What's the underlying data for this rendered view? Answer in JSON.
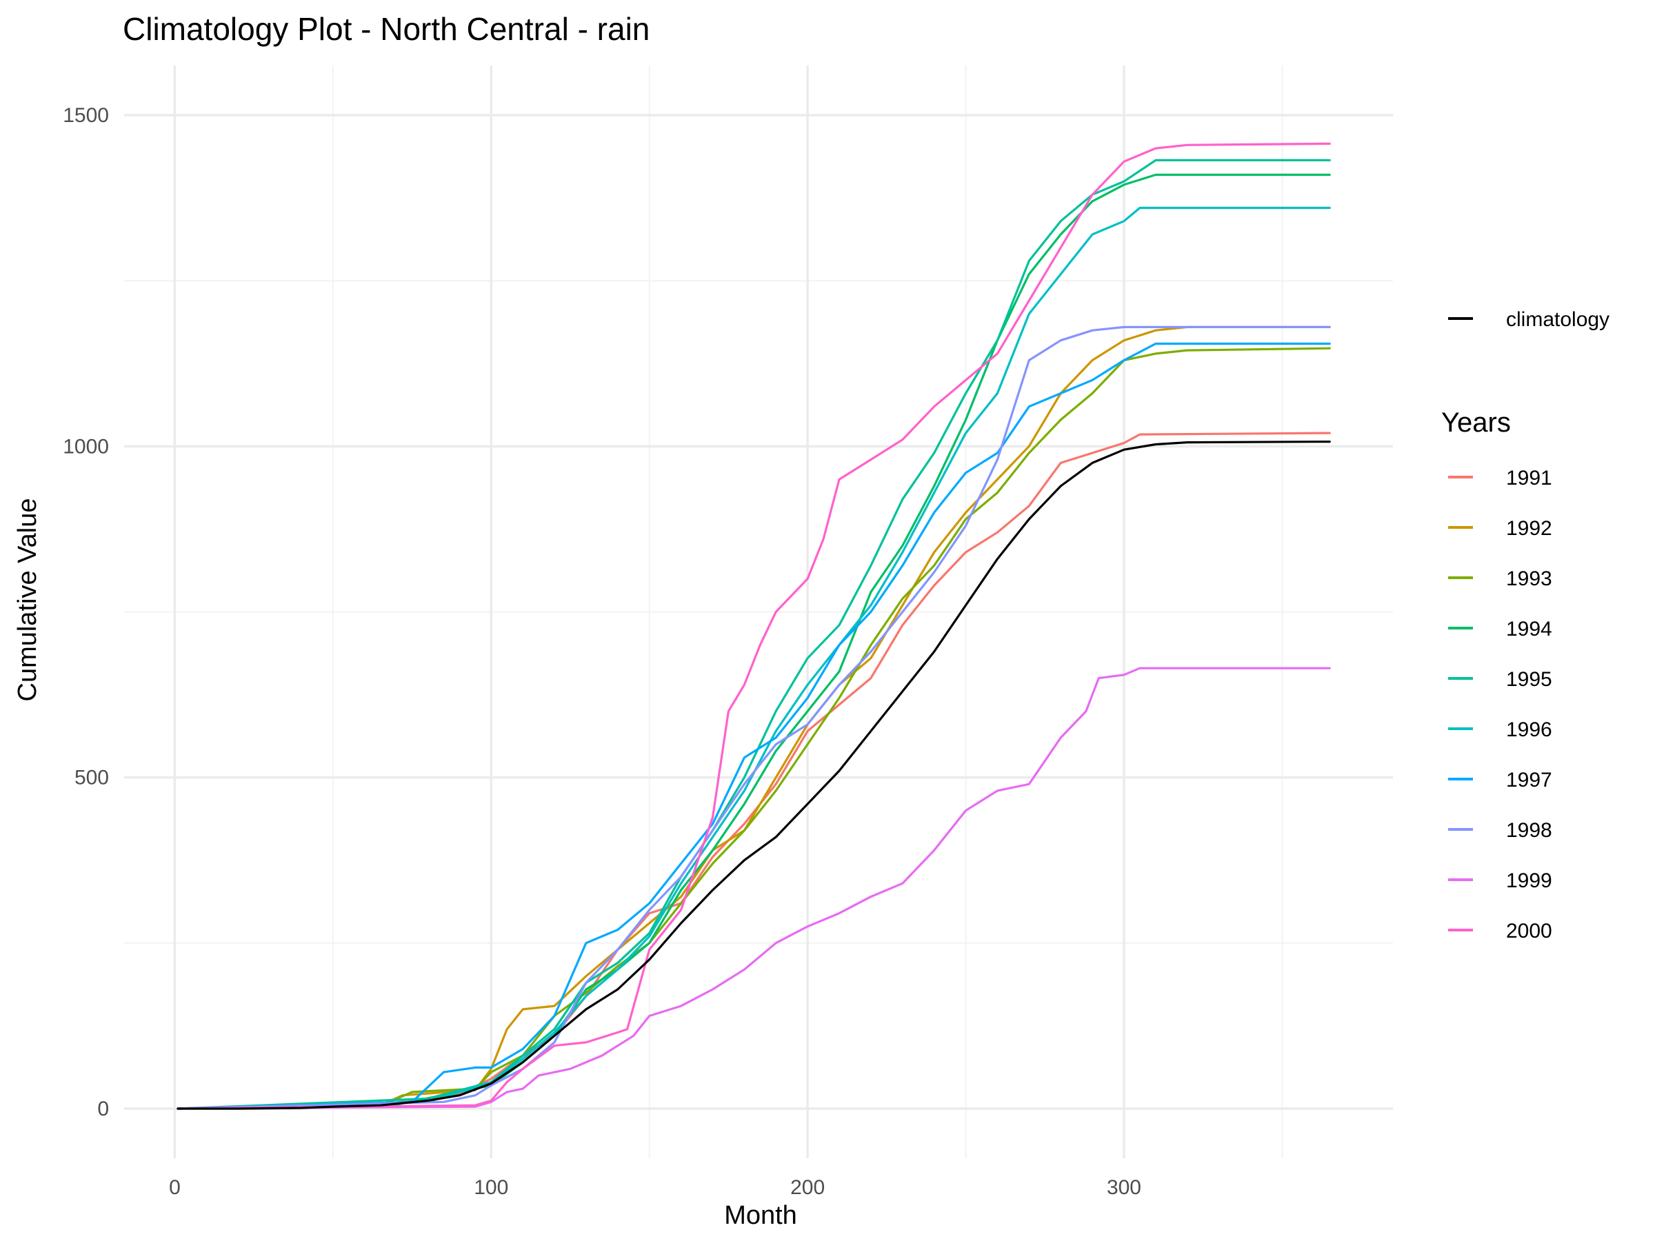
{
  "chart_data": {
    "type": "line",
    "title": "Climatology Plot - North Central - rain",
    "xlabel": "Month",
    "ylabel": "Cumulative Value",
    "xlim": [
      -16,
      385
    ],
    "ylim": [
      -75,
      1575
    ],
    "x_ticks": [
      0,
      100,
      200,
      300
    ],
    "y_ticks": [
      0,
      500,
      1000,
      1500
    ],
    "grid": true,
    "legend_placement": "right",
    "climatology_legend_label": "climatology",
    "legend_title": "Years",
    "climatology": {
      "name": "climatology",
      "color": "#000000",
      "points": [
        [
          1,
          0
        ],
        [
          20,
          0
        ],
        [
          40,
          1
        ],
        [
          50,
          3
        ],
        [
          65,
          5
        ],
        [
          80,
          12
        ],
        [
          90,
          20
        ],
        [
          100,
          38
        ],
        [
          110,
          70
        ],
        [
          120,
          110
        ],
        [
          130,
          150
        ],
        [
          140,
          180
        ],
        [
          150,
          225
        ],
        [
          160,
          280
        ],
        [
          170,
          330
        ],
        [
          180,
          375
        ],
        [
          190,
          410
        ],
        [
          200,
          460
        ],
        [
          210,
          510
        ],
        [
          220,
          570
        ],
        [
          230,
          630
        ],
        [
          240,
          690
        ],
        [
          250,
          760
        ],
        [
          260,
          830
        ],
        [
          270,
          890
        ],
        [
          280,
          940
        ],
        [
          290,
          975
        ],
        [
          300,
          995
        ],
        [
          310,
          1003
        ],
        [
          320,
          1006
        ],
        [
          365,
          1007
        ]
      ]
    },
    "series": [
      {
        "name": "1991",
        "color": "#F8766D",
        "points": [
          [
            1,
            0
          ],
          [
            60,
            3
          ],
          [
            90,
            22
          ],
          [
            100,
            45
          ],
          [
            110,
            80
          ],
          [
            120,
            110
          ],
          [
            130,
            170
          ],
          [
            140,
            240
          ],
          [
            150,
            295
          ],
          [
            160,
            310
          ],
          [
            170,
            380
          ],
          [
            180,
            430
          ],
          [
            190,
            490
          ],
          [
            200,
            570
          ],
          [
            210,
            610
          ],
          [
            220,
            650
          ],
          [
            230,
            730
          ],
          [
            240,
            790
          ],
          [
            250,
            840
          ],
          [
            260,
            870
          ],
          [
            270,
            910
          ],
          [
            280,
            975
          ],
          [
            290,
            990
          ],
          [
            300,
            1005
          ],
          [
            305,
            1018
          ],
          [
            365,
            1020
          ]
        ]
      },
      {
        "name": "1992",
        "color": "#CD9600",
        "points": [
          [
            1,
            0
          ],
          [
            65,
            5
          ],
          [
            72,
            20
          ],
          [
            95,
            28
          ],
          [
            100,
            60
          ],
          [
            105,
            120
          ],
          [
            110,
            150
          ],
          [
            120,
            155
          ],
          [
            130,
            200
          ],
          [
            140,
            240
          ],
          [
            150,
            280
          ],
          [
            160,
            320
          ],
          [
            170,
            390
          ],
          [
            180,
            420
          ],
          [
            190,
            500
          ],
          [
            200,
            580
          ],
          [
            210,
            640
          ],
          [
            220,
            680
          ],
          [
            230,
            760
          ],
          [
            240,
            840
          ],
          [
            250,
            900
          ],
          [
            260,
            950
          ],
          [
            270,
            1000
          ],
          [
            280,
            1080
          ],
          [
            290,
            1130
          ],
          [
            300,
            1160
          ],
          [
            310,
            1175
          ],
          [
            320,
            1180
          ],
          [
            365,
            1180
          ]
        ]
      },
      {
        "name": "1993",
        "color": "#7CAE00",
        "points": [
          [
            1,
            0
          ],
          [
            65,
            4
          ],
          [
            75,
            25
          ],
          [
            95,
            30
          ],
          [
            100,
            55
          ],
          [
            110,
            80
          ],
          [
            120,
            140
          ],
          [
            130,
            175
          ],
          [
            140,
            215
          ],
          [
            150,
            250
          ],
          [
            160,
            310
          ],
          [
            170,
            370
          ],
          [
            180,
            420
          ],
          [
            190,
            480
          ],
          [
            200,
            550
          ],
          [
            210,
            620
          ],
          [
            220,
            700
          ],
          [
            230,
            770
          ],
          [
            240,
            820
          ],
          [
            250,
            890
          ],
          [
            260,
            930
          ],
          [
            270,
            990
          ],
          [
            280,
            1040
          ],
          [
            290,
            1080
          ],
          [
            300,
            1130
          ],
          [
            310,
            1140
          ],
          [
            320,
            1145
          ],
          [
            365,
            1148
          ]
        ]
      },
      {
        "name": "1994",
        "color": "#00BE67",
        "points": [
          [
            1,
            0
          ],
          [
            70,
            6
          ],
          [
            100,
            35
          ],
          [
            110,
            70
          ],
          [
            120,
            110
          ],
          [
            130,
            180
          ],
          [
            140,
            210
          ],
          [
            150,
            250
          ],
          [
            160,
            330
          ],
          [
            170,
            390
          ],
          [
            180,
            460
          ],
          [
            190,
            540
          ],
          [
            200,
            600
          ],
          [
            210,
            660
          ],
          [
            220,
            780
          ],
          [
            230,
            850
          ],
          [
            240,
            940
          ],
          [
            250,
            1040
          ],
          [
            260,
            1160
          ],
          [
            270,
            1260
          ],
          [
            280,
            1320
          ],
          [
            290,
            1370
          ],
          [
            300,
            1395
          ],
          [
            310,
            1410
          ],
          [
            365,
            1410
          ]
        ]
      },
      {
        "name": "1995",
        "color": "#00C19A",
        "points": [
          [
            1,
            0
          ],
          [
            80,
            15
          ],
          [
            100,
            40
          ],
          [
            110,
            80
          ],
          [
            120,
            120
          ],
          [
            130,
            190
          ],
          [
            140,
            220
          ],
          [
            150,
            265
          ],
          [
            160,
            350
          ],
          [
            170,
            420
          ],
          [
            180,
            500
          ],
          [
            190,
            600
          ],
          [
            200,
            680
          ],
          [
            210,
            730
          ],
          [
            220,
            820
          ],
          [
            230,
            920
          ],
          [
            240,
            990
          ],
          [
            250,
            1080
          ],
          [
            260,
            1160
          ],
          [
            270,
            1280
          ],
          [
            280,
            1340
          ],
          [
            290,
            1380
          ],
          [
            300,
            1400
          ],
          [
            310,
            1432
          ],
          [
            365,
            1432
          ]
        ]
      },
      {
        "name": "1996",
        "color": "#00BFC4",
        "points": [
          [
            1,
            0
          ],
          [
            80,
            10
          ],
          [
            100,
            40
          ],
          [
            110,
            75
          ],
          [
            120,
            115
          ],
          [
            130,
            170
          ],
          [
            140,
            210
          ],
          [
            150,
            260
          ],
          [
            160,
            340
          ],
          [
            170,
            410
          ],
          [
            180,
            480
          ],
          [
            190,
            570
          ],
          [
            200,
            640
          ],
          [
            210,
            700
          ],
          [
            220,
            760
          ],
          [
            230,
            840
          ],
          [
            240,
            930
          ],
          [
            250,
            1020
          ],
          [
            260,
            1080
          ],
          [
            270,
            1200
          ],
          [
            280,
            1260
          ],
          [
            290,
            1320
          ],
          [
            300,
            1340
          ],
          [
            305,
            1360
          ],
          [
            365,
            1360
          ]
        ]
      },
      {
        "name": "1997",
        "color": "#00A9FF",
        "points": [
          [
            1,
            0
          ],
          [
            75,
            10
          ],
          [
            85,
            55
          ],
          [
            95,
            62
          ],
          [
            100,
            62
          ],
          [
            110,
            90
          ],
          [
            120,
            140
          ],
          [
            130,
            250
          ],
          [
            140,
            270
          ],
          [
            150,
            310
          ],
          [
            160,
            370
          ],
          [
            170,
            430
          ],
          [
            180,
            530
          ],
          [
            190,
            560
          ],
          [
            200,
            620
          ],
          [
            210,
            700
          ],
          [
            220,
            750
          ],
          [
            230,
            820
          ],
          [
            240,
            900
          ],
          [
            250,
            960
          ],
          [
            260,
            990
          ],
          [
            270,
            1060
          ],
          [
            280,
            1080
          ],
          [
            290,
            1100
          ],
          [
            300,
            1130
          ],
          [
            310,
            1155
          ],
          [
            365,
            1155
          ]
        ]
      },
      {
        "name": "1998",
        "color": "#8494FF",
        "points": [
          [
            1,
            0
          ],
          [
            85,
            10
          ],
          [
            95,
            20
          ],
          [
            100,
            35
          ],
          [
            110,
            60
          ],
          [
            120,
            100
          ],
          [
            130,
            190
          ],
          [
            140,
            240
          ],
          [
            150,
            300
          ],
          [
            160,
            350
          ],
          [
            170,
            420
          ],
          [
            180,
            490
          ],
          [
            190,
            550
          ],
          [
            200,
            580
          ],
          [
            210,
            640
          ],
          [
            220,
            690
          ],
          [
            230,
            750
          ],
          [
            240,
            810
          ],
          [
            250,
            880
          ],
          [
            260,
            980
          ],
          [
            270,
            1130
          ],
          [
            280,
            1160
          ],
          [
            290,
            1175
          ],
          [
            300,
            1180
          ],
          [
            365,
            1180
          ]
        ]
      },
      {
        "name": "1999",
        "color": "#E76BF3",
        "points": [
          [
            1,
            0
          ],
          [
            95,
            3
          ],
          [
            100,
            10
          ],
          [
            105,
            25
          ],
          [
            110,
            30
          ],
          [
            115,
            50
          ],
          [
            125,
            60
          ],
          [
            135,
            80
          ],
          [
            145,
            110
          ],
          [
            150,
            140
          ],
          [
            160,
            155
          ],
          [
            170,
            180
          ],
          [
            180,
            210
          ],
          [
            190,
            250
          ],
          [
            200,
            275
          ],
          [
            210,
            295
          ],
          [
            220,
            320
          ],
          [
            230,
            340
          ],
          [
            240,
            390
          ],
          [
            250,
            450
          ],
          [
            260,
            480
          ],
          [
            270,
            490
          ],
          [
            280,
            560
          ],
          [
            288,
            600
          ],
          [
            292,
            650
          ],
          [
            300,
            655
          ],
          [
            305,
            665
          ],
          [
            365,
            665
          ]
        ]
      },
      {
        "name": "2000",
        "color": "#FF61CC",
        "points": [
          [
            1,
            0
          ],
          [
            95,
            5
          ],
          [
            100,
            12
          ],
          [
            105,
            40
          ],
          [
            110,
            60
          ],
          [
            120,
            95
          ],
          [
            130,
            100
          ],
          [
            140,
            115
          ],
          [
            143,
            120
          ],
          [
            150,
            240
          ],
          [
            160,
            300
          ],
          [
            170,
            440
          ],
          [
            175,
            600
          ],
          [
            180,
            640
          ],
          [
            185,
            700
          ],
          [
            190,
            750
          ],
          [
            200,
            800
          ],
          [
            205,
            860
          ],
          [
            210,
            950
          ],
          [
            220,
            980
          ],
          [
            230,
            1010
          ],
          [
            240,
            1060
          ],
          [
            250,
            1100
          ],
          [
            260,
            1140
          ],
          [
            270,
            1220
          ],
          [
            280,
            1300
          ],
          [
            290,
            1380
          ],
          [
            300,
            1430
          ],
          [
            310,
            1450
          ],
          [
            320,
            1455
          ],
          [
            365,
            1457
          ]
        ]
      }
    ]
  }
}
